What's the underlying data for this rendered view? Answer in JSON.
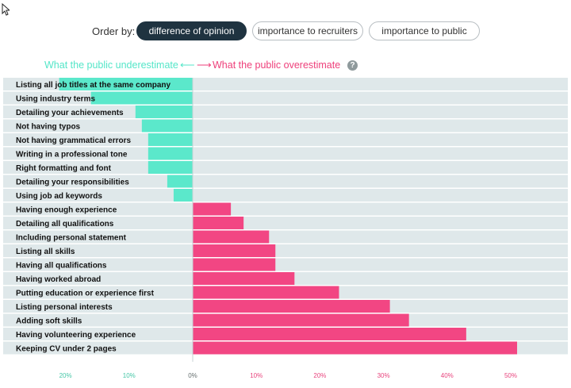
{
  "order_by": {
    "label": "Order by:",
    "options": [
      {
        "label": "difference of opinion",
        "active": true
      },
      {
        "label": "importance to recruiters",
        "active": false
      },
      {
        "label": "importance to public",
        "active": false
      }
    ]
  },
  "legend": {
    "left": "What the public underestimate",
    "left_arrow": "⟵",
    "right_arrow": "⟶",
    "right": "What the public overestimate",
    "help_icon": "?"
  },
  "colors": {
    "negative": "#5be8cb",
    "positive": "#f24683",
    "row_band": "#dfe8ea",
    "tick_negative": "#46c7a7",
    "tick_positive": "#e8447d"
  },
  "chart_data": {
    "type": "bar",
    "orientation": "horizontal",
    "categories": [
      "Listing all job titles at the same company",
      "Using industry terms",
      "Detailing your achievements",
      "Not having typos",
      "Not having grammatical errors",
      "Writing in a professional tone",
      "Right formatting and font",
      "Detailing your responsibilities",
      "Using job ad keywords",
      "Having enough experience",
      "Detailing all qualifications",
      "Including personal statement",
      "Listing all skills",
      "Having all qualifications",
      "Having worked abroad",
      "Putting education or experience first",
      "Listing personal interests",
      "Adding soft skills",
      "Having volunteering experience",
      "Keeping CV under 2 pages"
    ],
    "values": [
      -21,
      -16,
      -9,
      -8,
      -7,
      -7,
      -7,
      -4,
      -3,
      6,
      8,
      12,
      13,
      13,
      16,
      23,
      31,
      34,
      43,
      51
    ],
    "xlim": [
      -20,
      50
    ],
    "xticks": [
      -20,
      -10,
      0,
      10,
      20,
      30,
      40,
      50
    ],
    "xtick_labels": [
      "20%",
      "10%",
      "0%",
      "10%",
      "20%",
      "30%",
      "40%",
      "50%"
    ]
  }
}
